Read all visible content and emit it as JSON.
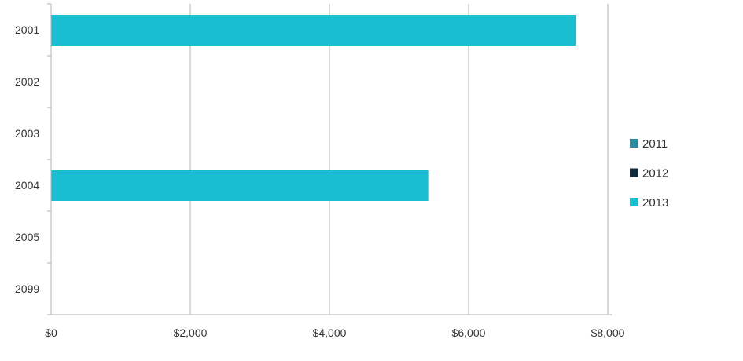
{
  "chart_data": {
    "type": "bar",
    "orientation": "horizontal",
    "categories": [
      "2001",
      "2002",
      "2003",
      "2004",
      "2005",
      "2099"
    ],
    "series": [
      {
        "name": "2011",
        "color": "#2a8aa0",
        "values": [
          0,
          0,
          0,
          0,
          0,
          0
        ]
      },
      {
        "name": "2012",
        "color": "#0f2a3d",
        "values": [
          0,
          0,
          0,
          0,
          0,
          0
        ]
      },
      {
        "name": "2013",
        "color": "#19bfd0",
        "values": [
          7540,
          0,
          0,
          5420,
          0,
          0
        ]
      }
    ],
    "x_ticks": [
      "$0",
      "$2,000",
      "$4,000",
      "$6,000",
      "$8,000"
    ],
    "xlim": [
      0,
      8000
    ],
    "grid": true,
    "legend_position": "right",
    "title": "",
    "xlabel": "",
    "ylabel": ""
  }
}
